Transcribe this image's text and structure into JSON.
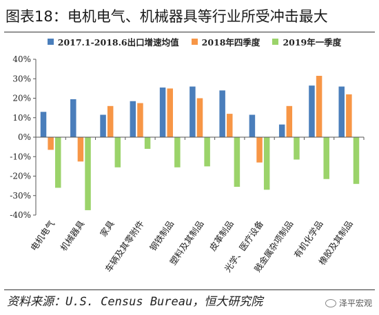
{
  "title": "图表18：电机电气、机械器具等行业所受冲击最大",
  "source": "资料来源：U.S. Census Bureau，恒大研究院",
  "watermark": "泽平宏观",
  "watermark_icon": "wechat-icon",
  "colors": {
    "series1": "#4a7ebb",
    "series2": "#f79646",
    "series3": "#9bd36a"
  },
  "chart_data": {
    "type": "bar",
    "title": "",
    "xlabel": "",
    "ylabel": "",
    "ylim": [
      -40,
      40
    ],
    "yticks": [
      -40,
      -30,
      -20,
      -10,
      0,
      10,
      20,
      30,
      40
    ],
    "ytick_labels": [
      "-40%",
      "-30%",
      "-20%",
      "-10%",
      "0%",
      "10%",
      "20%",
      "30%",
      "40%"
    ],
    "grid": false,
    "legend_position": "top",
    "categories": [
      "电机电气",
      "机械器具",
      "家具",
      "车辆及其零附件",
      "钢铁制品",
      "塑料及其制品",
      "皮革制品",
      "光学、医疗设备",
      "贱金属杂项制品",
      "有机化学品",
      "橡胶及其制品"
    ],
    "series": [
      {
        "name": "2017.1-2018.6出口增速均值",
        "values": [
          13,
          19.5,
          11.5,
          18.5,
          25.5,
          26,
          24,
          11.5,
          6.5,
          26.5,
          26
        ]
      },
      {
        "name": "2018年四季度",
        "values": [
          -6.5,
          -12.5,
          16,
          17.5,
          25,
          20,
          12,
          -13,
          16,
          31.5,
          22
        ]
      },
      {
        "name": "2019年一季度",
        "values": [
          -26,
          -37.5,
          -15.5,
          -6,
          -15.5,
          -15,
          -25.5,
          -27,
          -11.5,
          -21.5,
          -24
        ]
      }
    ]
  }
}
